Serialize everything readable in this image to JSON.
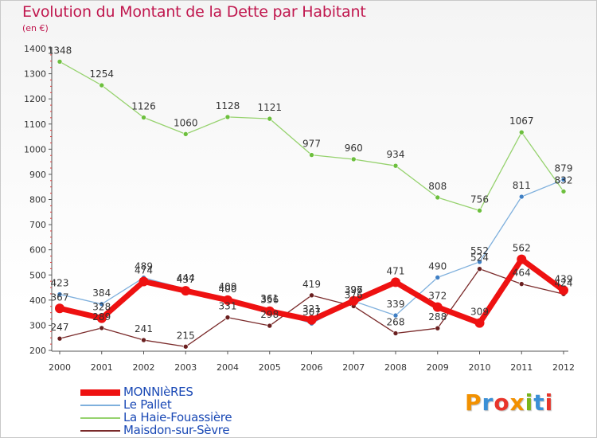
{
  "header": {
    "title": "Evolution du Montant de la Dette par Habitant",
    "subtitle": "(en €)"
  },
  "logo": {
    "text": "Proxiti",
    "colors": [
      "#f29100",
      "#3a8fd6",
      "#e8342a",
      "#f29100",
      "#79b51c",
      "#3a8fd6",
      "#e8342a"
    ]
  },
  "chart_data": {
    "type": "line",
    "x": [
      "2000",
      "2001",
      "2002",
      "2003",
      "2004",
      "2005",
      "2006",
      "2007",
      "2008",
      "2009",
      "2010",
      "2011",
      "2012"
    ],
    "ylim": [
      200,
      1400
    ],
    "yticks": [
      200,
      300,
      400,
      500,
      600,
      700,
      800,
      900,
      1000,
      1100,
      1200,
      1300,
      1400
    ],
    "grid": false,
    "legend_position": "bottom-left",
    "series": [
      {
        "name": "MONNIèRES",
        "color": "#ee1111",
        "point_color": "#ee1111",
        "emphasis": true,
        "values": [
          367,
          328,
          474,
          437,
          400,
          356,
          321,
          397,
          471,
          372,
          309,
          562,
          439
        ]
      },
      {
        "name": "Le Pallet",
        "color": "#7fb0dd",
        "point_color": "#3f7fc4",
        "emphasis": false,
        "values": [
          423,
          384,
          489,
          444,
          409,
          361,
          307,
          396,
          339,
          490,
          552,
          811,
          879
        ]
      },
      {
        "name": "La Haie-Fouassière",
        "color": "#96d26e",
        "point_color": "#6cbf3d",
        "emphasis": false,
        "values": [
          1348,
          1254,
          1126,
          1060,
          1128,
          1121,
          977,
          960,
          934,
          808,
          756,
          1067,
          832
        ]
      },
      {
        "name": "Maisdon-sur-Sèvre",
        "color": "#7a2a2a",
        "point_color": "#6a1f1f",
        "emphasis": false,
        "values": [
          247,
          289,
          241,
          215,
          331,
          298,
          419,
          376,
          268,
          288,
          524,
          464,
          424
        ]
      }
    ]
  }
}
